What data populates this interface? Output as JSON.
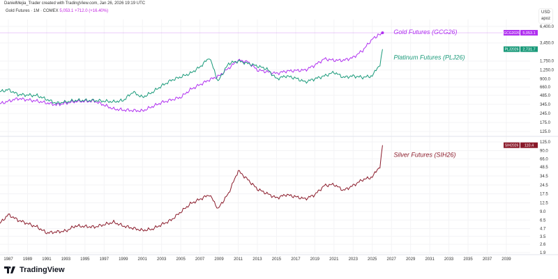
{
  "credit": "DanielMejia_Trader created with TradingView.com, Jan 26, 2026 19:19 UTC",
  "legend": {
    "symbol": "Gold Futures · 1M · COMEX",
    "value": "5,053.1",
    "change": "+712.0 (+16.40%)"
  },
  "scale": {
    "currency": "USD",
    "mode": "apoz"
  },
  "logo": "TradingView",
  "chart_data": [
    {
      "type": "line",
      "pane": "top",
      "log_scale": true,
      "yticks": [
        "6,400.0",
        "3,450.0",
        "1,750.0",
        "1,250.0",
        "900.0",
        "660.0",
        "485.0",
        "345.0",
        "245.0",
        "175.0",
        "125.0"
      ],
      "ytick_values": [
        6400,
        3450,
        1750,
        1250,
        900,
        660,
        485,
        345,
        245,
        175,
        125
      ],
      "series": [
        {
          "name": "Gold Futures (GCG26)",
          "tag": "GCG2026",
          "last": "5,053.1",
          "color": "#b030f0",
          "x": [
            1986,
            1988,
            1990,
            1992,
            1994,
            1996,
            1998,
            1999,
            2001,
            2003,
            2005,
            2006,
            2008,
            2009,
            2011,
            2012,
            2013,
            2015,
            2016,
            2018,
            2019,
            2020,
            2021,
            2022,
            2023,
            2024,
            2025,
            2026.07
          ],
          "y": [
            350,
            430,
            390,
            340,
            385,
            390,
            290,
            280,
            270,
            370,
            450,
            600,
            870,
            1000,
            1800,
            1700,
            1250,
            1100,
            1200,
            1250,
            1500,
            1900,
            1800,
            1800,
            2000,
            2600,
            4000,
            5053.1
          ]
        },
        {
          "name": "Platinum Futures (PLJ26)",
          "tag": "PLJ2026",
          "last": "2,731.7",
          "color": "#1a9a7a",
          "x": [
            1986,
            1987,
            1988,
            1990,
            1992,
            1994,
            1996,
            1997,
            1998,
            1999,
            2000,
            2001,
            2002,
            2003,
            2004,
            2006,
            2007,
            2008,
            2008.9,
            2010,
            2011,
            2012,
            2013,
            2014,
            2015,
            2016,
            2017,
            2018,
            2019,
            2020,
            2021,
            2022,
            2023,
            2024,
            2025,
            2025.8,
            2026.07
          ],
          "y": [
            550,
            600,
            500,
            480,
            360,
            400,
            400,
            390,
            380,
            400,
            550,
            450,
            540,
            690,
            850,
            1100,
            1400,
            2000,
            820,
            1600,
            1750,
            1600,
            1450,
            1300,
            900,
            1000,
            920,
            800,
            900,
            1000,
            1150,
            950,
            1000,
            950,
            1000,
            1550,
            2731.7
          ]
        }
      ]
    },
    {
      "type": "line",
      "pane": "bottom",
      "log_scale": true,
      "yticks": [
        "125.0",
        "90.0",
        "66.0",
        "48.5",
        "34.5",
        "24.5",
        "17.5",
        "12.5",
        "9.0",
        "6.5",
        "4.7",
        "3.5",
        "2.6",
        "1.9"
      ],
      "ytick_values": [
        125,
        90,
        66,
        48.5,
        34.5,
        24.5,
        17.5,
        12.5,
        9,
        6.5,
        4.7,
        3.5,
        2.6,
        1.9
      ],
      "series": [
        {
          "name": "Silver Futures (SIH26)",
          "tag": "SIH2026",
          "last": "110.4",
          "color": "#8a1a2a",
          "x": [
            1986,
            1987,
            1988,
            1990,
            1991,
            1993,
            1994,
            1996,
            1998,
            1999,
            2001,
            2002,
            2004,
            2006,
            2008,
            2008.9,
            2010,
            2011,
            2012,
            2013,
            2015,
            2016,
            2018,
            2019,
            2020,
            2021,
            2022,
            2023,
            2024,
            2025,
            2025.8,
            2026.07
          ],
          "y": [
            5.5,
            8,
            6.5,
            5,
            4,
            4.3,
            5.2,
            5,
            6,
            5.2,
            4.4,
            4.6,
            6.5,
            12,
            17,
            10,
            18,
            42,
            30,
            21,
            15,
            17,
            14.5,
            17,
            24,
            25,
            20,
            24,
            30,
            33,
            50,
            110.4
          ]
        }
      ]
    }
  ],
  "xticks": [
    "1987",
    "1989",
    "1991",
    "1993",
    "1995",
    "1997",
    "1999",
    "2001",
    "2003",
    "2005",
    "2007",
    "2009",
    "2011",
    "2013",
    "2015",
    "2017",
    "2019",
    "2021",
    "2023",
    "2025",
    "2027",
    "2029",
    "2031",
    "2033",
    "2035",
    "2037",
    "2039"
  ]
}
